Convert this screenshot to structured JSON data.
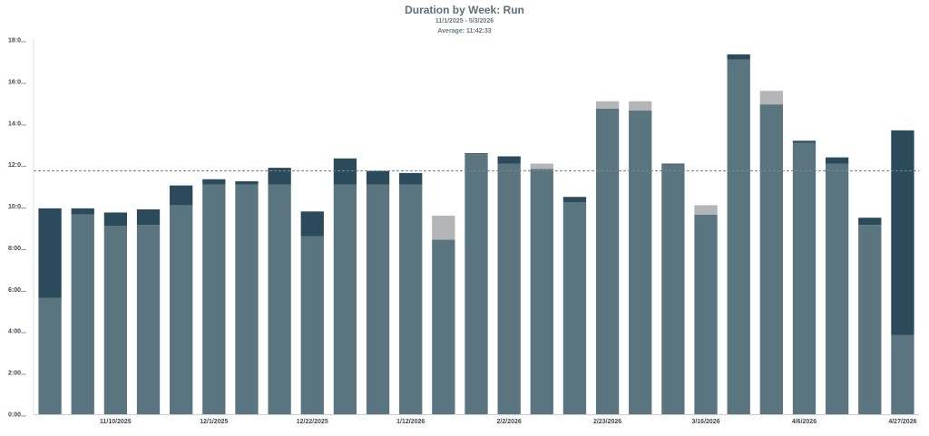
{
  "chart_data": {
    "type": "bar",
    "stacked": true,
    "title": "Duration by Week: Run",
    "subtitle": "11/1/2025 - 5/3/2026",
    "average_label": "Average: 11:42:33",
    "average_value": 11.7,
    "ylim": [
      0,
      18
    ],
    "y_ticks": [
      {
        "value": 0,
        "label": "0:00..."
      },
      {
        "value": 2,
        "label": "2:00..."
      },
      {
        "value": 4,
        "label": "4:00..."
      },
      {
        "value": 6,
        "label": "6:00..."
      },
      {
        "value": 8,
        "label": "8:00..."
      },
      {
        "value": 10,
        "label": "10:0..."
      },
      {
        "value": 12,
        "label": "12:0..."
      },
      {
        "value": 14,
        "label": "14:0..."
      },
      {
        "value": 16,
        "label": "16:0..."
      },
      {
        "value": 18,
        "label": "18:0..."
      }
    ],
    "x_tick_labels": [
      {
        "index": 2,
        "label": "11/10/2025"
      },
      {
        "index": 5,
        "label": "12/1/2025"
      },
      {
        "index": 8,
        "label": "12/22/2025"
      },
      {
        "index": 11,
        "label": "1/12/2026"
      },
      {
        "index": 14,
        "label": "2/2/2026"
      },
      {
        "index": 17,
        "label": "2/23/2026"
      },
      {
        "index": 20,
        "label": "3/16/2026"
      },
      {
        "index": 23,
        "label": "4/6/2026"
      },
      {
        "index": 26,
        "label": "4/27/2026"
      }
    ],
    "colors": {
      "base": "#5b7580",
      "dark": "#2b4b5c",
      "light": "#b3b5b7",
      "average": "#7a858c"
    },
    "bars": [
      {
        "base": 5.6,
        "dark": 4.3,
        "light": 0
      },
      {
        "base": 9.6,
        "dark": 0.3,
        "light": 0
      },
      {
        "base": 9.05,
        "dark": 0.65,
        "light": 0
      },
      {
        "base": 9.1,
        "dark": 0.75,
        "light": 0
      },
      {
        "base": 10.05,
        "dark": 0.95,
        "light": 0
      },
      {
        "base": 11.05,
        "dark": 0.25,
        "light": 0
      },
      {
        "base": 11.05,
        "dark": 0.15,
        "light": 0
      },
      {
        "base": 11.05,
        "dark": 0.8,
        "light": 0
      },
      {
        "base": 8.55,
        "dark": 1.2,
        "light": 0
      },
      {
        "base": 11.05,
        "dark": 1.25,
        "light": 0
      },
      {
        "base": 11.05,
        "dark": 0.65,
        "light": 0
      },
      {
        "base": 11.05,
        "dark": 0.55,
        "light": 0
      },
      {
        "base": 8.4,
        "dark": 0,
        "light": 1.15
      },
      {
        "base": 12.5,
        "dark": 0.05,
        "light": 0
      },
      {
        "base": 12.05,
        "dark": 0.35,
        "light": 0
      },
      {
        "base": 11.8,
        "dark": 0,
        "light": 0.25
      },
      {
        "base": 10.2,
        "dark": 0.25,
        "light": 0
      },
      {
        "base": 14.7,
        "dark": 0,
        "light": 0.35
      },
      {
        "base": 14.6,
        "dark": 0,
        "light": 0.45
      },
      {
        "base": 12.0,
        "dark": 0.05,
        "light": 0
      },
      {
        "base": 9.6,
        "dark": 0,
        "light": 0.45
      },
      {
        "base": 17.05,
        "dark": 0.25,
        "light": 0
      },
      {
        "base": 14.9,
        "dark": 0,
        "light": 0.65
      },
      {
        "base": 13.05,
        "dark": 0.1,
        "light": 0
      },
      {
        "base": 12.05,
        "dark": 0.3,
        "light": 0
      },
      {
        "base": 9.1,
        "dark": 0.35,
        "light": 0
      },
      {
        "base": 3.8,
        "dark": 9.85,
        "light": 0
      }
    ]
  }
}
